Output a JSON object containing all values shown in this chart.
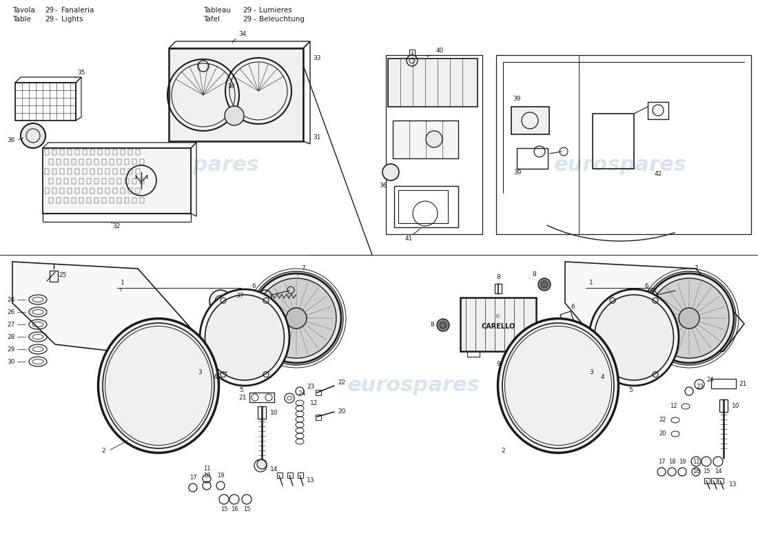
{
  "bg": "#ffffff",
  "lc": "#1a1a1a",
  "tc": "#1a1a1a",
  "wm": "#b8cfe0",
  "fw": 11.0,
  "fh": 8.0,
  "dpi": 100,
  "header": [
    [
      "Tavola",
      "29",
      "-",
      "Fanaleria",
      "Tableau",
      "29",
      "-",
      "Lumieres"
    ],
    [
      "Table",
      "29",
      "-",
      "Lights",
      "Tafel",
      "29",
      "-",
      "Beleuchtung"
    ]
  ]
}
